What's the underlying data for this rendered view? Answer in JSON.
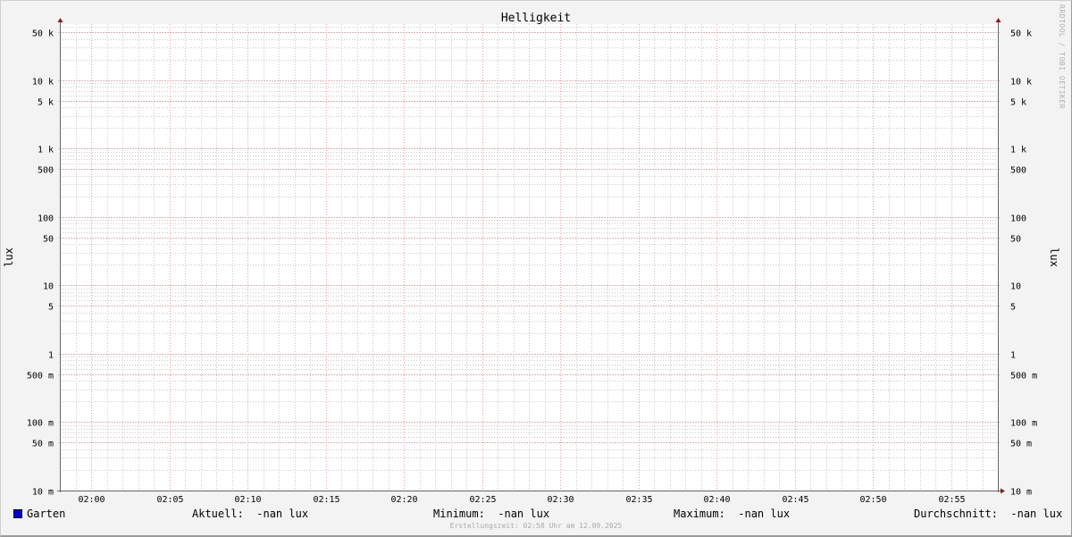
{
  "chart_data": {
    "type": "line",
    "title": "Helligkeit",
    "ylabel": "lux",
    "y_scale": "log",
    "ylim": [
      0.01,
      66000
    ],
    "xlim": [
      "01:58",
      "02:58"
    ],
    "x_ticks": [
      "02:00",
      "02:05",
      "02:10",
      "02:15",
      "02:20",
      "02:25",
      "02:30",
      "02:35",
      "02:40",
      "02:45",
      "02:50",
      "02:55"
    ],
    "y_ticks": [
      {
        "value": 50000,
        "label": "50 k"
      },
      {
        "value": 10000,
        "label": "10 k"
      },
      {
        "value": 5000,
        "label": "5 k"
      },
      {
        "value": 1000,
        "label": "1 k"
      },
      {
        "value": 500,
        "label": "500"
      },
      {
        "value": 100,
        "label": "100"
      },
      {
        "value": 50,
        "label": "50"
      },
      {
        "value": 10,
        "label": "10"
      },
      {
        "value": 5,
        "label": "5"
      },
      {
        "value": 1,
        "label": "1"
      },
      {
        "value": 0.5,
        "label": "500 m"
      },
      {
        "value": 0.1,
        "label": "100 m"
      },
      {
        "value": 0.05,
        "label": "50 m"
      },
      {
        "value": 0.01,
        "label": "10 m"
      }
    ],
    "grid": true,
    "series": [
      {
        "name": "Garten",
        "color": "#0000cc",
        "values": []
      }
    ],
    "colors": {
      "major_grid": "#e8a0a0",
      "minor_grid": "#c8c8c8",
      "axis": "#666666",
      "arrow": "#8b1a1a"
    }
  },
  "legend": {
    "series_name": "Garten",
    "current": "Aktuell:  -nan lux",
    "minimum": "Minimum:  -nan lux",
    "maximum": "Maximum:  -nan lux",
    "average": "Durchschnitt:  -nan lux"
  },
  "footer": "Erstellungszeit: 02:58 Uhr am 12.09.2025",
  "watermark": "RRDTOOL / TOBI OETIKER"
}
